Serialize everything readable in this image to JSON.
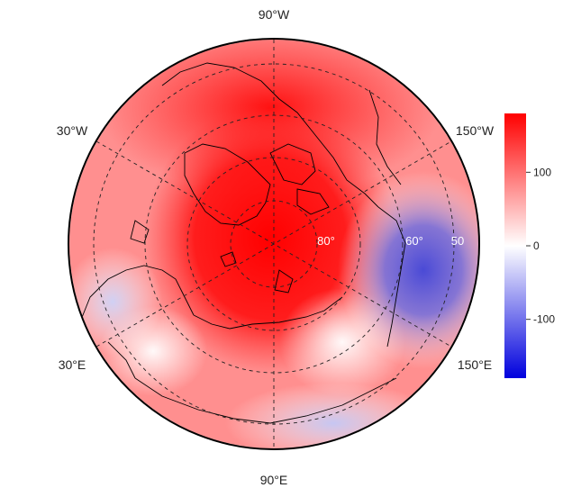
{
  "map": {
    "projection": "north polar stereographic",
    "longitude_labels": {
      "top": "90°W",
      "bottom": "90°E",
      "upper_left": "30°W",
      "upper_right": "150°W",
      "lower_left": "30°E",
      "lower_right": "150°E"
    },
    "latitude_labels": [
      "80°",
      "60°",
      "50"
    ],
    "gridlines": "dashed"
  },
  "colorbar": {
    "ticks": [
      "100",
      "0",
      "-100"
    ],
    "range": [
      -180,
      180
    ],
    "colors": {
      "high": "#ff0000",
      "mid": "#ffffff",
      "low": "#0000dd"
    }
  },
  "field": {
    "description_free": true,
    "high_color": "#ff1a1a",
    "low_color": "#5a5ad8"
  }
}
